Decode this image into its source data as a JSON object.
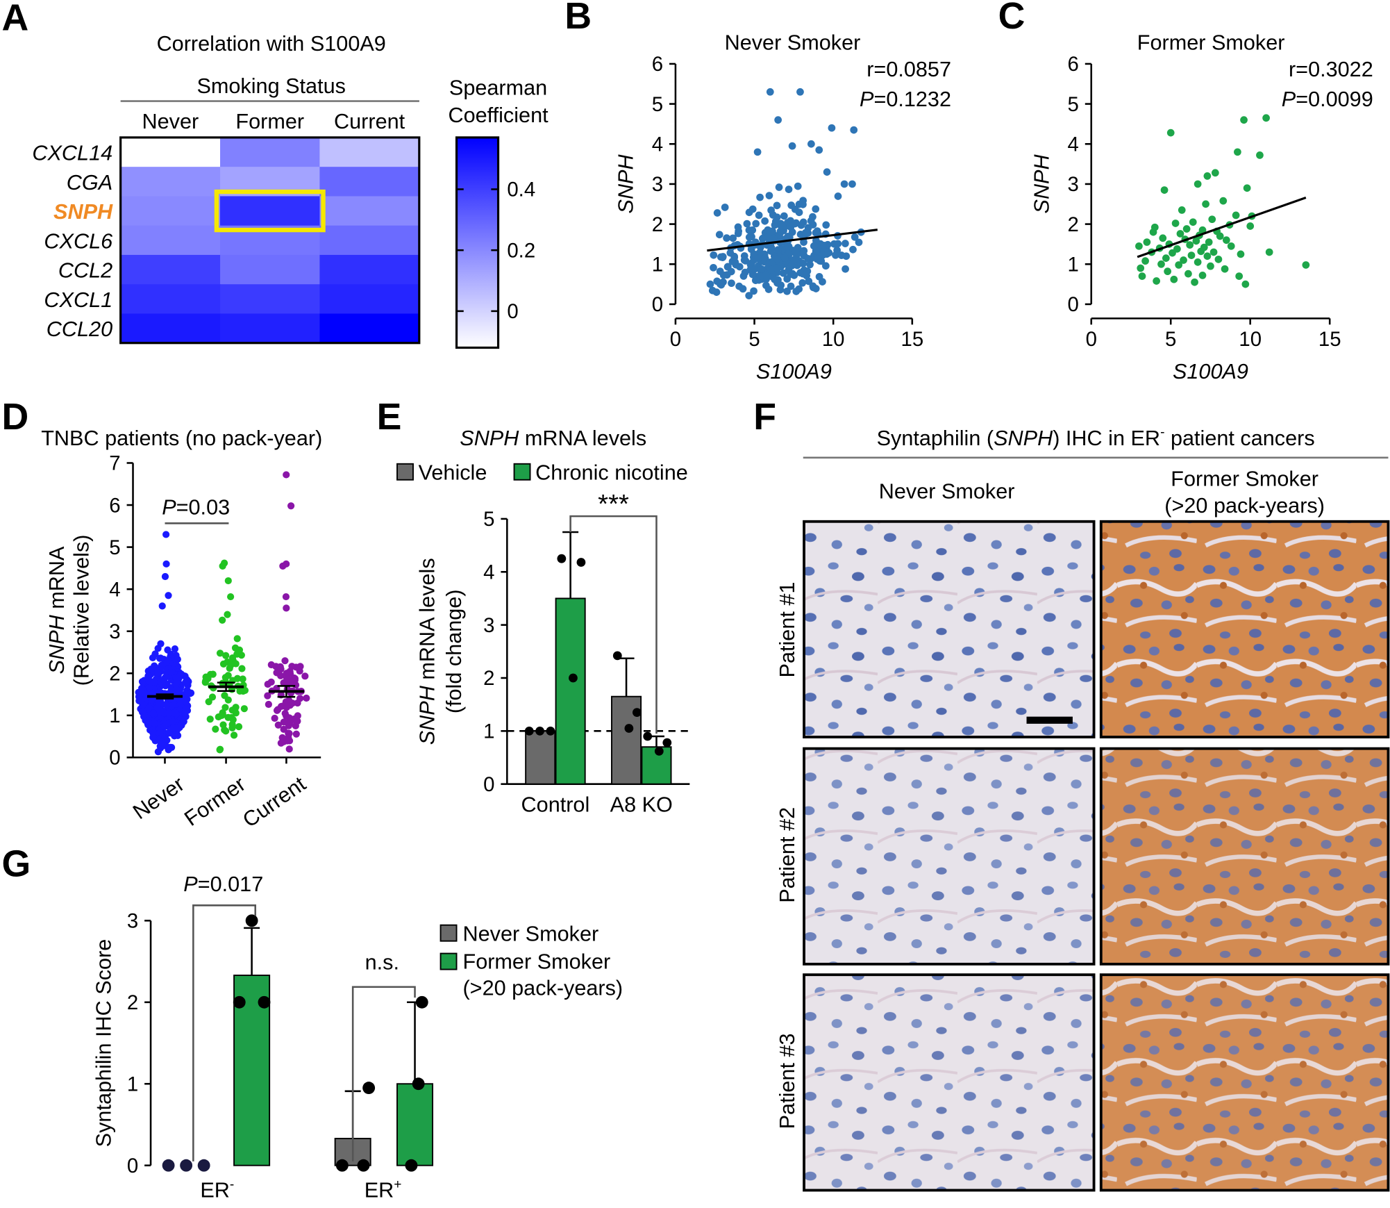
{
  "colors": {
    "heat_high": "#0000ff",
    "heat_low": "#ffffff",
    "highlight_box": "#f5e800",
    "snph_label": "#f08a24",
    "scatter_never": "#2e75b6",
    "scatter_former": "#1ea64a",
    "dot_never": "#1a1aff",
    "dot_former": "#22c322",
    "dot_current": "#8a16a8",
    "bar_vehicle": "#6a6a6a",
    "bar_nicotine": "#1e9e48"
  },
  "panels": {
    "A": {
      "letter": "A",
      "title": "Correlation with S100A9",
      "group_header": "Smoking Status",
      "colorbar_title": [
        "Spearman",
        "Coefficient"
      ]
    },
    "B": {
      "letter": "B",
      "r": "r=0.0857",
      "p_label": "P",
      "p_value": "=0.1232"
    },
    "C": {
      "letter": "C",
      "r": "r=0.3022",
      "p_label": "P",
      "p_value": "=0.0099"
    },
    "D": {
      "letter": "D",
      "title": "TNBC patients (no pack-year)",
      "p_label": "P",
      "p_value": "=0.03"
    },
    "E": {
      "letter": "E",
      "title_italic": "SNPH",
      "title_rest": " mRNA levels",
      "sig": "***"
    },
    "F": {
      "letter": "F",
      "title_pre": "Syntaphilin (",
      "title_italic": "SNPH",
      "title_mid": ") IHC in ER",
      "title_sup": "-",
      "title_post": " patient cancers",
      "col_never": "Never Smoker",
      "col_former": [
        "Former Smoker",
        "(>20 pack-years)"
      ],
      "rows": [
        "Patient #1",
        "Patient #2",
        "Patient #3"
      ]
    },
    "G": {
      "letter": "G",
      "p_text": "P=0.017",
      "p_label": "P",
      "p_value": "=0.017",
      "ns_label": "n.s.",
      "xlabel_er_neg": "ER",
      "xlabel_er_neg_sup": "-",
      "xlabel_er_pos": "ER",
      "xlabel_er_pos_sup": "+"
    }
  },
  "chart_data": [
    {
      "id": "A",
      "type": "heatmap",
      "title": "Correlation with S100A9",
      "columns": [
        "Never",
        "Former",
        "Current"
      ],
      "rows": [
        "CXCL14",
        "CGA",
        "SNPH",
        "CXCL6",
        "CCL2",
        "CXCL1",
        "CCL20"
      ],
      "highlighted_cell": {
        "row": "SNPH",
        "column": "Former"
      },
      "values": [
        [
          -0.12,
          0.22,
          0.05
        ],
        [
          0.18,
          0.13,
          0.29
        ],
        [
          0.2,
          0.44,
          0.2
        ],
        [
          0.22,
          0.25,
          0.28
        ],
        [
          0.4,
          0.27,
          0.44
        ],
        [
          0.44,
          0.41,
          0.47
        ],
        [
          0.5,
          0.48,
          0.57
        ]
      ],
      "colorbar": {
        "title": "Spearman Coefficient",
        "ticks": [
          0.4,
          0.2,
          0
        ],
        "range": [
          -0.12,
          0.57
        ]
      }
    },
    {
      "id": "B",
      "type": "scatter",
      "title": "Never Smoker",
      "xlabel": "S100A9",
      "ylabel": "SNPH",
      "xlim": [
        0,
        15
      ],
      "ylim": [
        0,
        6
      ],
      "xticks": [
        0,
        5,
        10,
        15
      ],
      "yticks": [
        0,
        1,
        2,
        3,
        4,
        5,
        6
      ],
      "fit_line": {
        "x": [
          2,
          12.8
        ],
        "y": [
          1.34,
          1.86
        ]
      },
      "r": 0.0857,
      "p": 0.1232,
      "n_points": 330
    },
    {
      "id": "C",
      "type": "scatter",
      "title": "Former Smoker",
      "xlabel": "S100A9",
      "ylabel": "SNPH",
      "xlim": [
        0,
        15
      ],
      "ylim": [
        0,
        6
      ],
      "xticks": [
        0,
        5,
        10,
        15
      ],
      "yticks": [
        0,
        1,
        2,
        3,
        4,
        5,
        6
      ],
      "fit_line": {
        "x": [
          2.9,
          13.5
        ],
        "y": [
          1.18,
          2.66
        ]
      },
      "r": 0.3022,
      "p": 0.0099,
      "points": [
        [
          5.0,
          4.28
        ],
        [
          9.6,
          4.6
        ],
        [
          11.0,
          4.65
        ],
        [
          10.6,
          3.72
        ],
        [
          9.2,
          3.8
        ],
        [
          7.8,
          3.28
        ],
        [
          7.3,
          3.2
        ],
        [
          6.7,
          3.0
        ],
        [
          4.6,
          2.85
        ],
        [
          9.8,
          2.9
        ],
        [
          8.3,
          2.58
        ],
        [
          7.2,
          2.5
        ],
        [
          5.7,
          2.35
        ],
        [
          9.1,
          2.22
        ],
        [
          10.1,
          2.2
        ],
        [
          6.4,
          2.05
        ],
        [
          7.6,
          2.12
        ],
        [
          5.3,
          2.02
        ],
        [
          8.7,
          1.98
        ],
        [
          4.0,
          1.92
        ],
        [
          6.0,
          1.88
        ],
        [
          7.0,
          1.85
        ],
        [
          7.9,
          1.82
        ],
        [
          3.9,
          1.8
        ],
        [
          5.6,
          1.76
        ],
        [
          6.8,
          1.72
        ],
        [
          8.1,
          1.7
        ],
        [
          10.0,
          1.95
        ],
        [
          4.5,
          1.65
        ],
        [
          5.9,
          1.62
        ],
        [
          6.6,
          1.58
        ],
        [
          7.4,
          1.55
        ],
        [
          8.5,
          1.6
        ],
        [
          3.5,
          1.55
        ],
        [
          4.9,
          1.5
        ],
        [
          6.2,
          1.48
        ],
        [
          7.1,
          1.42
        ],
        [
          8.8,
          1.45
        ],
        [
          3.0,
          1.45
        ],
        [
          4.3,
          1.4
        ],
        [
          5.4,
          1.38
        ],
        [
          6.9,
          1.32
        ],
        [
          7.7,
          1.3
        ],
        [
          3.8,
          1.3
        ],
        [
          5.1,
          1.28
        ],
        [
          6.3,
          1.22
        ],
        [
          7.3,
          1.2
        ],
        [
          4.7,
          1.15
        ],
        [
          5.8,
          1.1
        ],
        [
          6.7,
          1.05
        ],
        [
          8.0,
          1.12
        ],
        [
          9.4,
          1.25
        ],
        [
          11.2,
          1.3
        ],
        [
          3.4,
          1.08
        ],
        [
          4.4,
          1.0
        ],
        [
          5.5,
          0.98
        ],
        [
          7.5,
          0.95
        ],
        [
          8.4,
          0.88
        ],
        [
          3.1,
          0.9
        ],
        [
          4.8,
          0.82
        ],
        [
          6.1,
          0.76
        ],
        [
          7.0,
          0.72
        ],
        [
          9.3,
          0.7
        ],
        [
          13.5,
          0.98
        ],
        [
          3.2,
          0.7
        ],
        [
          5.2,
          0.62
        ],
        [
          6.5,
          0.55
        ],
        [
          9.7,
          0.5
        ],
        [
          4.1,
          0.58
        ]
      ]
    },
    {
      "id": "D",
      "type": "scatter",
      "title": "TNBC patients (no pack-year)",
      "ylabel": "SNPH mRNA (Relative levels)",
      "categories": [
        "Never",
        "Former",
        "Current"
      ],
      "ylim": [
        0,
        7
      ],
      "yticks": [
        0,
        1,
        2,
        3,
        4,
        5,
        6,
        7
      ],
      "means": [
        1.45,
        1.68,
        1.57
      ],
      "sem": [
        0.05,
        0.1,
        0.13
      ],
      "comparison": {
        "groups": [
          "Never",
          "Former"
        ],
        "p": 0.03
      },
      "current_high_points": [
        6.72,
        5.98,
        4.6,
        4.55,
        3.82,
        3.55
      ],
      "former_high_points": [
        4.62,
        4.55,
        4.2,
        3.82
      ]
    },
    {
      "id": "E",
      "type": "bar",
      "title": "SNPH mRNA levels",
      "ylabel": "SNPH mRNA levels (fold change)",
      "categories": [
        "Control",
        "A8 KO"
      ],
      "ylim": [
        0,
        5
      ],
      "yticks": [
        0,
        1,
        2,
        3,
        4,
        5
      ],
      "reference_line": 1,
      "series": [
        {
          "name": "Vehicle",
          "values": [
            1.0,
            1.65
          ],
          "error": [
            0,
            0.72
          ],
          "points": [
            [
              1.0,
              1.0,
              1.0
            ],
            [
              2.42,
              1.35,
              1.05
            ]
          ]
        },
        {
          "name": "Chronic nicotine",
          "values": [
            3.5,
            0.7
          ],
          "error": [
            1.25,
            0.2
          ],
          "points": [
            [
              4.25,
              4.18,
              2.0
            ],
            [
              0.9,
              0.78,
              0.62
            ]
          ]
        }
      ],
      "significance": {
        "between": [
          "Control/Chronic nicotine",
          "A8 KO/Chronic nicotine"
        ],
        "label": "***"
      }
    },
    {
      "id": "G",
      "type": "bar",
      "ylabel": "Syntaphilin IHC Score",
      "categories": [
        "ER-",
        "ER+"
      ],
      "ylim": [
        0,
        3
      ],
      "yticks": [
        0,
        1,
        2,
        3
      ],
      "series": [
        {
          "name": "Never Smoker",
          "values": [
            0,
            0.33
          ],
          "error": [
            0,
            0.58
          ],
          "points": [
            [
              0,
              0,
              0
            ],
            [
              0,
              0,
              0.95
            ]
          ]
        },
        {
          "name": "Former Smoker (>20 pack-years)",
          "values": [
            2.33,
            1.0
          ],
          "error": [
            0.58,
            1.0
          ],
          "points": [
            [
              3,
              2,
              2
            ],
            [
              0,
              1,
              2
            ]
          ]
        }
      ],
      "comparisons": [
        {
          "category": "ER-",
          "label": "P=0.017"
        },
        {
          "category": "ER+",
          "label": "n.s."
        }
      ]
    }
  ]
}
